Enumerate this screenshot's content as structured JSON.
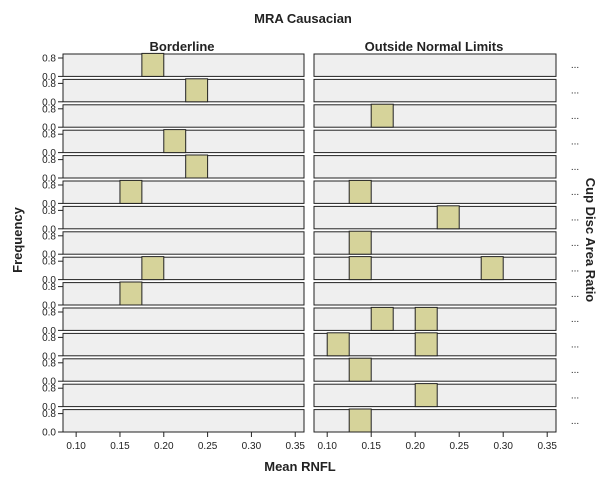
{
  "chart_data": {
    "type": "bar",
    "title": "MRA Causacian",
    "xlabel": "Mean RNFL",
    "ylabel": "Frequency",
    "right_label": "Cup Disc Area Ratio",
    "columns": [
      "Borderline",
      "Outside Normal Limits"
    ],
    "xlim": [
      0.085,
      0.36
    ],
    "x_ticks": [
      "0.10",
      "0.15",
      "0.20",
      "0.25",
      "0.30",
      "0.35"
    ],
    "x_tick_values": [
      0.1,
      0.15,
      0.2,
      0.25,
      0.3,
      0.35
    ],
    "y_ticks": [
      "0.8",
      "0.0"
    ],
    "ylim": [
      0,
      1
    ],
    "bin_width": 0.025,
    "row_labels": [
      "...",
      "...",
      "...",
      "...",
      "...",
      "...",
      "...",
      "...",
      "...",
      "...",
      "...",
      "...",
      "...",
      "...",
      "..."
    ],
    "rows": [
      {
        "Borderline": [
          0.1875
        ],
        "Outside Normal Limits": []
      },
      {
        "Borderline": [
          0.2375
        ],
        "Outside Normal Limits": []
      },
      {
        "Borderline": [],
        "Outside Normal Limits": [
          0.1625
        ]
      },
      {
        "Borderline": [
          0.2125
        ],
        "Outside Normal Limits": []
      },
      {
        "Borderline": [
          0.2375
        ],
        "Outside Normal Limits": []
      },
      {
        "Borderline": [
          0.1625
        ],
        "Outside Normal Limits": [
          0.1375
        ]
      },
      {
        "Borderline": [],
        "Outside Normal Limits": [
          0.2375
        ]
      },
      {
        "Borderline": [],
        "Outside Normal Limits": [
          0.1375
        ]
      },
      {
        "Borderline": [
          0.1875
        ],
        "Outside Normal Limits": [
          0.1375,
          0.2875
        ]
      },
      {
        "Borderline": [
          0.1625
        ],
        "Outside Normal Limits": []
      },
      {
        "Borderline": [],
        "Outside Normal Limits": [
          0.1625,
          0.2125
        ]
      },
      {
        "Borderline": [],
        "Outside Normal Limits": [
          0.1125,
          0.2125
        ]
      },
      {
        "Borderline": [],
        "Outside Normal Limits": [
          0.1375
        ]
      },
      {
        "Borderline": [],
        "Outside Normal Limits": [
          0.2125
        ]
      },
      {
        "Borderline": [],
        "Outside Normal Limits": [
          0.1375
        ]
      }
    ]
  }
}
